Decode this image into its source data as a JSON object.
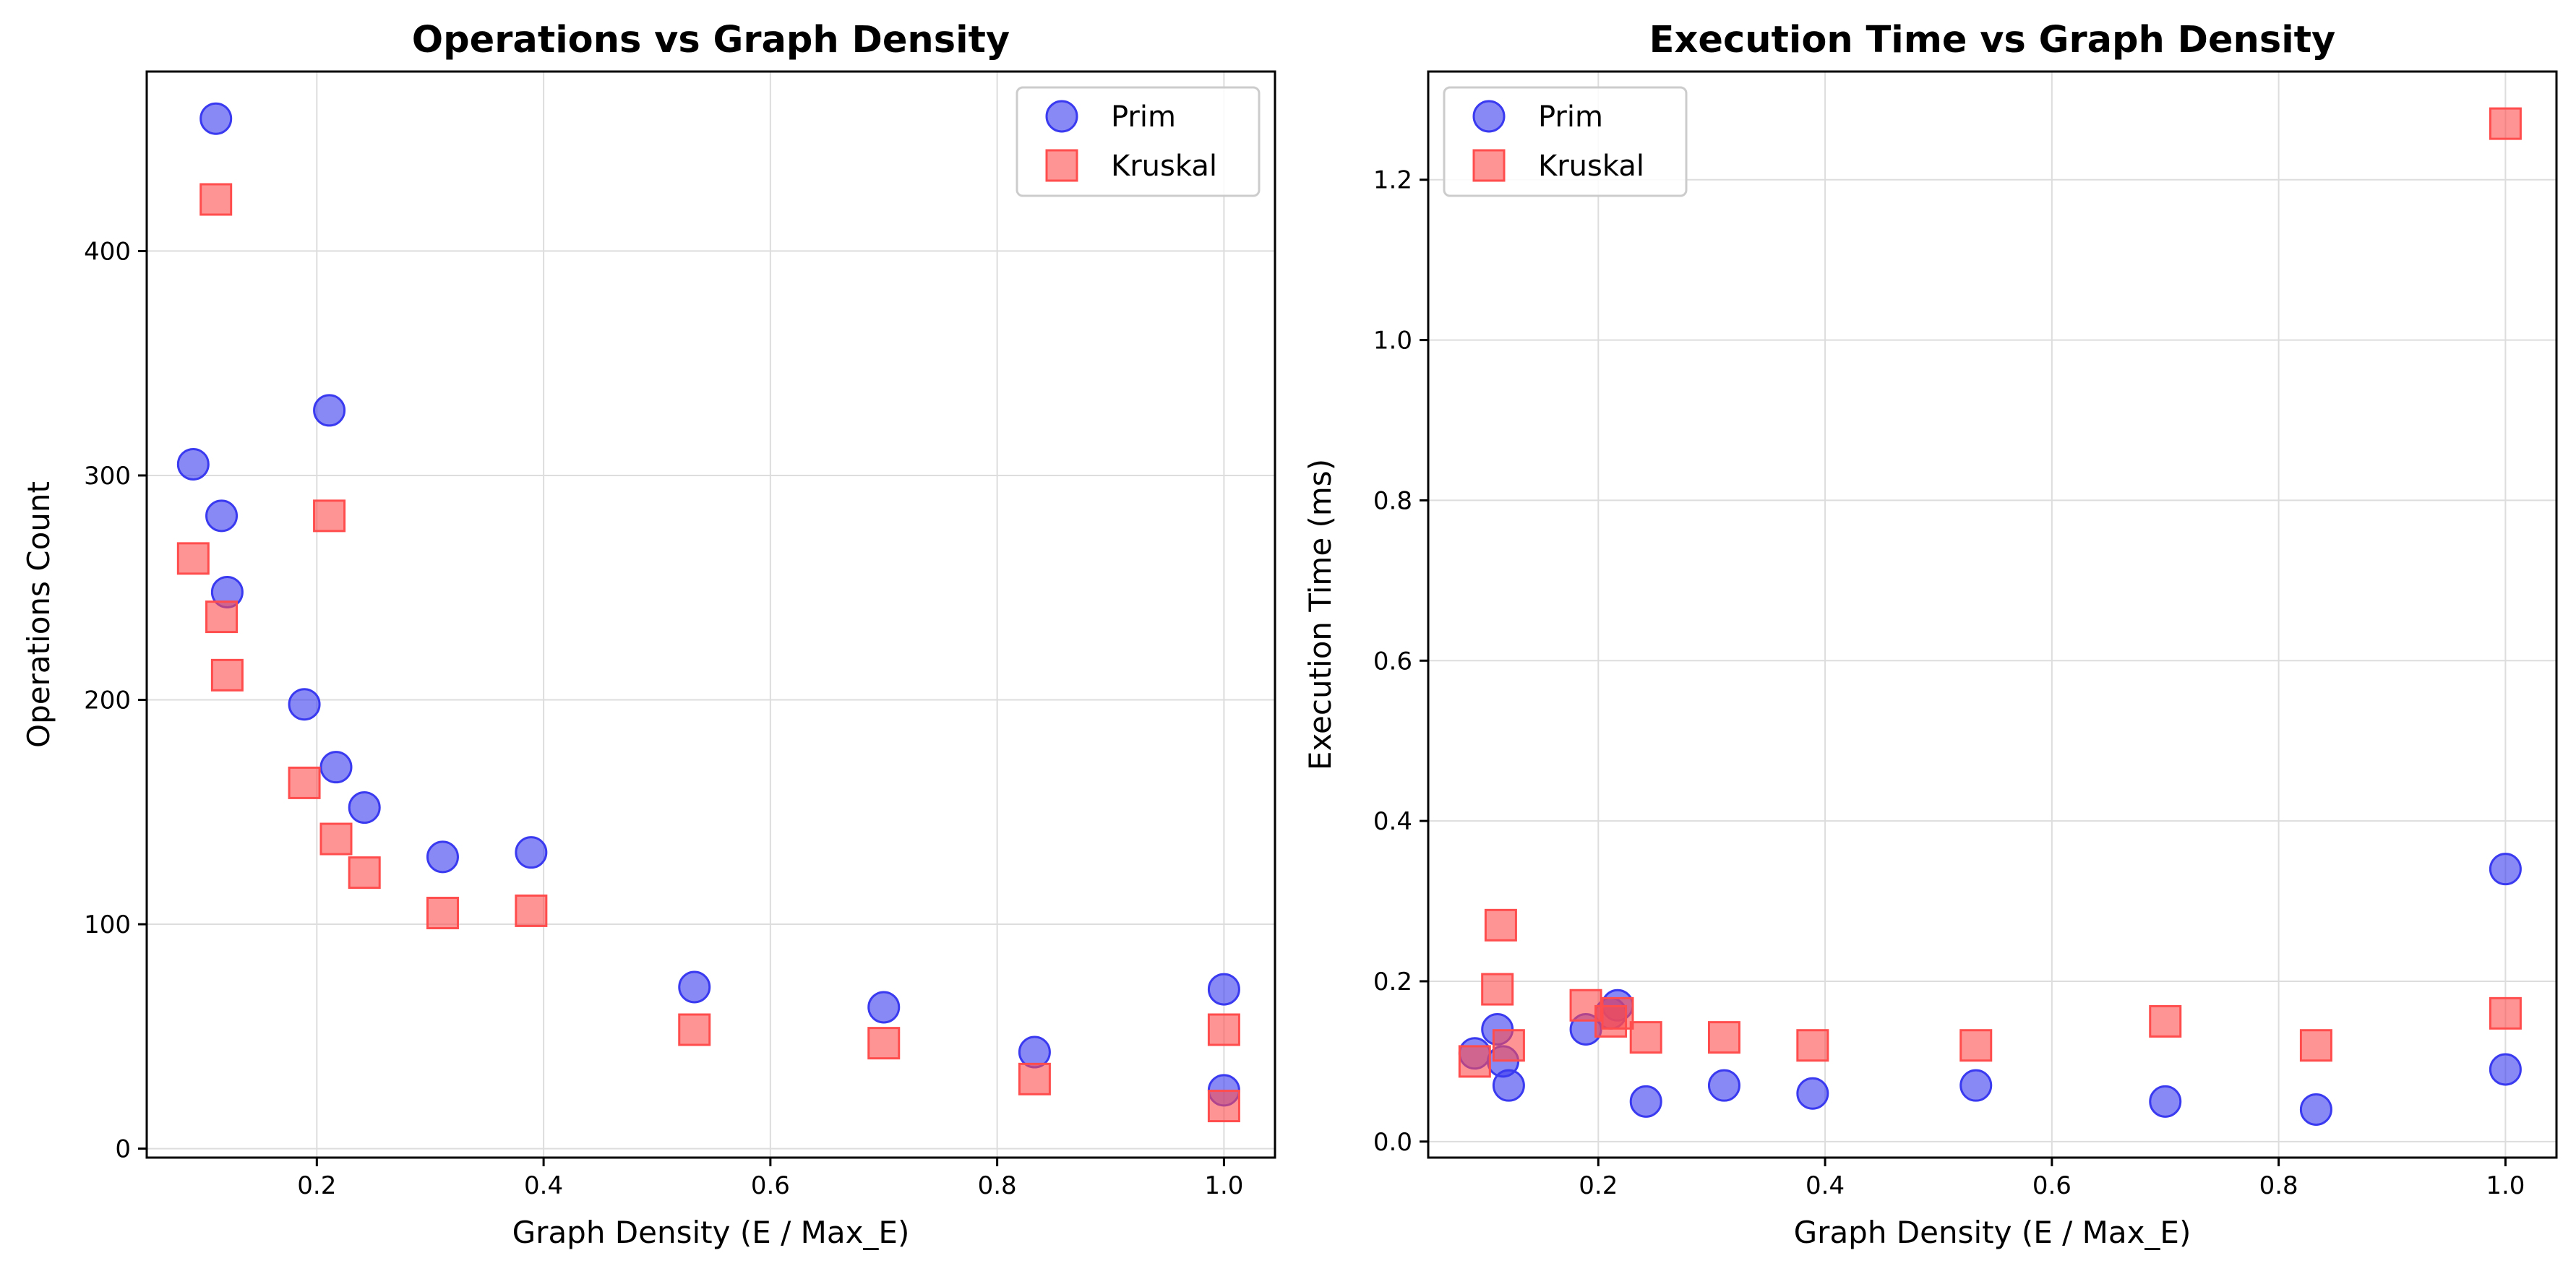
{
  "colors": {
    "prim": "#3a3af0",
    "kruskal": "#ff4d4d"
  },
  "chart_data": [
    {
      "type": "scatter",
      "title": "Operations vs Graph Density",
      "xlabel": "Graph Density (E / Max_E)",
      "ylabel": "Operations Count",
      "xlim": [
        0.05,
        1.045
      ],
      "ylim": [
        -4,
        480
      ],
      "xticks": [
        0.2,
        0.4,
        0.6,
        0.8,
        1.0
      ],
      "xtick_labels": [
        "0.2",
        "0.4",
        "0.6",
        "0.8",
        "1.0"
      ],
      "yticks": [
        0,
        100,
        200,
        300,
        400
      ],
      "ytick_labels": [
        "0",
        "100",
        "200",
        "300",
        "400"
      ],
      "grid": true,
      "legend": "top-right",
      "series": [
        {
          "name": "Prim",
          "marker": "circle",
          "color": "#3a3af0",
          "points": [
            [
              0.111,
              459
            ],
            [
              0.091,
              305
            ],
            [
              0.116,
              282
            ],
            [
              0.121,
              248
            ],
            [
              0.211,
              329
            ],
            [
              0.189,
              198
            ],
            [
              0.217,
              170
            ],
            [
              0.242,
              152
            ],
            [
              0.311,
              130
            ],
            [
              0.389,
              132
            ],
            [
              0.533,
              72
            ],
            [
              0.7,
              63
            ],
            [
              0.833,
              43
            ],
            [
              1.0,
              71
            ],
            [
              1.0,
              26
            ]
          ]
        },
        {
          "name": "Kruskal",
          "marker": "square",
          "color": "#ff4d4d",
          "points": [
            [
              0.111,
              423
            ],
            [
              0.091,
              263
            ],
            [
              0.116,
              237
            ],
            [
              0.121,
              211
            ],
            [
              0.211,
              282
            ],
            [
              0.189,
              163
            ],
            [
              0.217,
              138
            ],
            [
              0.242,
              123
            ],
            [
              0.311,
              105
            ],
            [
              0.389,
              106
            ],
            [
              0.533,
              53
            ],
            [
              0.7,
              47
            ],
            [
              0.833,
              31
            ],
            [
              1.0,
              53
            ],
            [
              1.0,
              19
            ]
          ]
        }
      ]
    },
    {
      "type": "scatter",
      "title": "Execution Time vs Graph Density",
      "xlabel": "Graph Density (E / Max_E)",
      "ylabel": "Execution Time (ms)",
      "xlim": [
        0.05,
        1.045
      ],
      "ylim": [
        -0.02,
        1.335
      ],
      "xticks": [
        0.2,
        0.4,
        0.6,
        0.8,
        1.0
      ],
      "xtick_labels": [
        "0.2",
        "0.4",
        "0.6",
        "0.8",
        "1.0"
      ],
      "yticks": [
        0.0,
        0.2,
        0.4,
        0.6,
        0.8,
        1.0,
        1.2
      ],
      "ytick_labels": [
        "0.0",
        "0.2",
        "0.4",
        "0.6",
        "0.8",
        "1.0",
        "1.2"
      ],
      "grid": true,
      "legend": "top-left",
      "series": [
        {
          "name": "Prim",
          "marker": "circle",
          "color": "#3a3af0",
          "points": [
            [
              0.091,
              0.11
            ],
            [
              0.111,
              0.14
            ],
            [
              0.116,
              0.1
            ],
            [
              0.121,
              0.07
            ],
            [
              0.189,
              0.14
            ],
            [
              0.211,
              0.16
            ],
            [
              0.217,
              0.17
            ],
            [
              0.242,
              0.05
            ],
            [
              0.311,
              0.07
            ],
            [
              0.389,
              0.06
            ],
            [
              0.533,
              0.07
            ],
            [
              0.7,
              0.05
            ],
            [
              0.833,
              0.04
            ],
            [
              1.0,
              0.34
            ],
            [
              1.0,
              0.09
            ]
          ]
        },
        {
          "name": "Kruskal",
          "marker": "square",
          "color": "#ff4d4d",
          "points": [
            [
              0.091,
              0.1
            ],
            [
              0.111,
              0.19
            ],
            [
              0.114,
              0.27
            ],
            [
              0.121,
              0.12
            ],
            [
              0.189,
              0.17
            ],
            [
              0.211,
              0.15
            ],
            [
              0.217,
              0.16
            ],
            [
              0.242,
              0.13
            ],
            [
              0.311,
              0.13
            ],
            [
              0.389,
              0.12
            ],
            [
              0.533,
              0.12
            ],
            [
              0.7,
              0.15
            ],
            [
              0.833,
              0.12
            ],
            [
              1.0,
              1.27
            ],
            [
              1.0,
              0.16
            ]
          ]
        }
      ]
    }
  ]
}
